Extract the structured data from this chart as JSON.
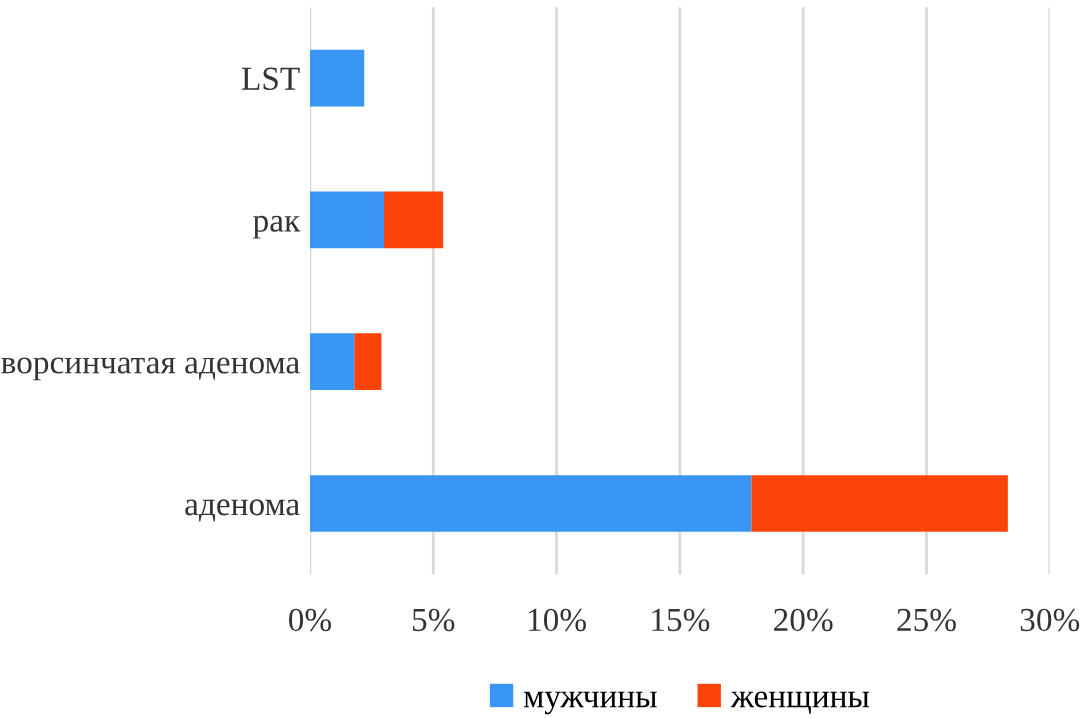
{
  "chart_data": {
    "type": "bar",
    "orientation": "horizontal",
    "stacked": true,
    "categories": [
      "LST",
      "рак",
      "ворсинчатая аденома",
      "аденома"
    ],
    "series": [
      {
        "name": "мужчины",
        "color": "#3a96f5",
        "values": [
          2.2,
          3.0,
          1.8,
          17.9
        ]
      },
      {
        "name": "женщины",
        "color": "#fc4309",
        "values": [
          0,
          2.4,
          1.1,
          10.4
        ]
      }
    ],
    "xlim": [
      0,
      30
    ],
    "xticks": [
      {
        "value": 0,
        "label": "0%"
      },
      {
        "value": 5,
        "label": "5%"
      },
      {
        "value": 10,
        "label": "10%"
      },
      {
        "value": 15,
        "label": "15%"
      },
      {
        "value": 20,
        "label": "20%"
      },
      {
        "value": 25,
        "label": "25%"
      },
      {
        "value": 30,
        "label": "30%"
      }
    ],
    "grid": "x",
    "legend": "bottom"
  }
}
